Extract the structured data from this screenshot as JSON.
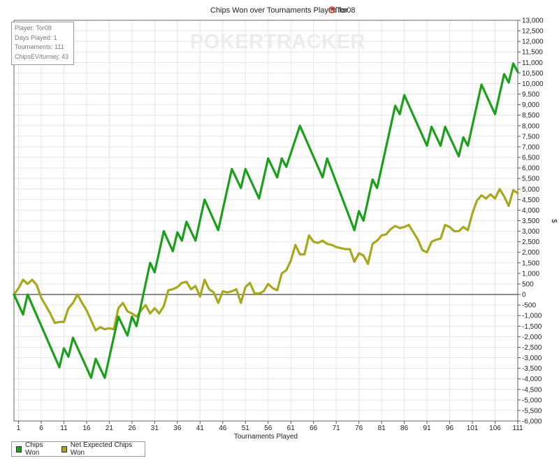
{
  "title_prefix": "Chips Won over Tournaments Played for",
  "player": "Tor08",
  "watermark": "POKERTRACKER",
  "info": {
    "player_line": "Player: Tor08",
    "days_line": "Days Played: 1",
    "tournaments_line": "Tournaments: 111",
    "chipsev_line": "ChipsEV/turniej: 43"
  },
  "colors": {
    "chips_won": "#1aa01a",
    "net_expected": "#a8a81c",
    "grid": "#e6e6e6",
    "zero_line": "#333333"
  },
  "chart_data": {
    "type": "line",
    "title": "Chips Won over Tournaments Played for Tor08",
    "xlabel": "Tournaments Played",
    "ylabel": "$",
    "xlim": [
      0,
      111
    ],
    "ylim": [
      -6000,
      13000
    ],
    "x_ticks": [
      1,
      6,
      11,
      16,
      21,
      26,
      31,
      36,
      41,
      46,
      51,
      56,
      61,
      66,
      71,
      76,
      81,
      86,
      91,
      96,
      101,
      106,
      111
    ],
    "y_ticks": [
      -6000,
      -5500,
      -5000,
      -4500,
      -4000,
      -3500,
      -3000,
      -2500,
      -2000,
      -1500,
      -1000,
      -500,
      0,
      500,
      1000,
      1500,
      2000,
      2500,
      3000,
      3500,
      4000,
      4500,
      5000,
      5500,
      6000,
      6500,
      7000,
      7500,
      8000,
      8500,
      9000,
      9500,
      10000,
      10500,
      11000,
      11500,
      12000,
      12500,
      13000
    ],
    "y_tick_labels": [
      "-6,000",
      "-5,500",
      "-5,000",
      "-4,500",
      "-4,000",
      "-3,500",
      "-3,000",
      "-2,500",
      "-2,000",
      "-1,500",
      "-1,000",
      "-500",
      "0",
      "500",
      "1,000",
      "1,500",
      "2,000",
      "2,500",
      "3,000",
      "3,500",
      "4,000",
      "4,500",
      "5,000",
      "5,500",
      "6,000",
      "6,500",
      "7,000",
      "7,500",
      "8,000",
      "8,500",
      "9,000",
      "9,500",
      "10,000",
      "10,500",
      "11,000",
      "11,500",
      "12,000",
      "12,500",
      "13,000"
    ],
    "grid": true,
    "legend_position": "bottom-left",
    "series": [
      {
        "name": "Chips Won",
        "color": "#1aa01a",
        "points": [
          [
            0,
            0
          ],
          [
            2,
            -950
          ],
          [
            3,
            0
          ],
          [
            10,
            -3450
          ],
          [
            11,
            -2550
          ],
          [
            12,
            -2950
          ],
          [
            13,
            -2050
          ],
          [
            17,
            -3950
          ],
          [
            18,
            -3050
          ],
          [
            20,
            -3950
          ],
          [
            23,
            -1050
          ],
          [
            25,
            -1950
          ],
          [
            26,
            -1050
          ],
          [
            27,
            -1500
          ],
          [
            30,
            1500
          ],
          [
            31,
            1050
          ],
          [
            33,
            3000
          ],
          [
            35,
            2050
          ],
          [
            36,
            2950
          ],
          [
            37,
            2550
          ],
          [
            38,
            3450
          ],
          [
            40,
            2550
          ],
          [
            42,
            4500
          ],
          [
            45,
            3050
          ],
          [
            48,
            5950
          ],
          [
            50,
            5050
          ],
          [
            51,
            5950
          ],
          [
            54,
            4550
          ],
          [
            56,
            6450
          ],
          [
            58,
            5550
          ],
          [
            59,
            6450
          ],
          [
            60,
            6050
          ],
          [
            63,
            8000
          ],
          [
            68,
            5550
          ],
          [
            69,
            6450
          ],
          [
            75,
            3050
          ],
          [
            76,
            3950
          ],
          [
            77,
            3500
          ],
          [
            79,
            5450
          ],
          [
            80,
            5050
          ],
          [
            84,
            8950
          ],
          [
            85,
            8550
          ],
          [
            86,
            9450
          ],
          [
            91,
            7050
          ],
          [
            92,
            7950
          ],
          [
            94,
            7050
          ],
          [
            95,
            7950
          ],
          [
            98,
            6550
          ],
          [
            99,
            7450
          ],
          [
            100,
            7050
          ],
          [
            103,
            9950
          ],
          [
            106,
            8550
          ],
          [
            108,
            10450
          ],
          [
            109,
            10050
          ],
          [
            110,
            10950
          ],
          [
            111,
            10550
          ]
        ]
      },
      {
        "name": "Net Expected Chips Won",
        "color": "#a8a81c",
        "points": [
          [
            0,
            0
          ],
          [
            1,
            300
          ],
          [
            2,
            700
          ],
          [
            3,
            500
          ],
          [
            4,
            700
          ],
          [
            5,
            450
          ],
          [
            6,
            -150
          ],
          [
            8,
            -900
          ],
          [
            9,
            -1350
          ],
          [
            10,
            -1300
          ],
          [
            11,
            -1300
          ],
          [
            12,
            -650
          ],
          [
            13,
            -400
          ],
          [
            14,
            0
          ],
          [
            15,
            -400
          ],
          [
            16,
            -750
          ],
          [
            18,
            -1700
          ],
          [
            19,
            -1550
          ],
          [
            20,
            -1650
          ],
          [
            21,
            -1600
          ],
          [
            22,
            -1650
          ],
          [
            23,
            -650
          ],
          [
            24,
            -400
          ],
          [
            25,
            -800
          ],
          [
            26,
            -900
          ],
          [
            27,
            -1050
          ],
          [
            28,
            -750
          ],
          [
            29,
            -500
          ],
          [
            30,
            -900
          ],
          [
            31,
            -650
          ],
          [
            32,
            -900
          ],
          [
            33,
            -550
          ],
          [
            34,
            200
          ],
          [
            35,
            250
          ],
          [
            36,
            350
          ],
          [
            37,
            550
          ],
          [
            38,
            600
          ],
          [
            39,
            250
          ],
          [
            40,
            400
          ],
          [
            41,
            -100
          ],
          [
            42,
            700
          ],
          [
            43,
            250
          ],
          [
            44,
            100
          ],
          [
            45,
            -400
          ],
          [
            46,
            150
          ],
          [
            47,
            100
          ],
          [
            48,
            150
          ],
          [
            49,
            250
          ],
          [
            50,
            -400
          ],
          [
            51,
            350
          ],
          [
            52,
            550
          ],
          [
            53,
            50
          ],
          [
            54,
            50
          ],
          [
            55,
            150
          ],
          [
            56,
            500
          ],
          [
            57,
            300
          ],
          [
            58,
            200
          ],
          [
            59,
            1000
          ],
          [
            60,
            1150
          ],
          [
            61,
            1600
          ],
          [
            62,
            2350
          ],
          [
            63,
            1900
          ],
          [
            64,
            1900
          ],
          [
            65,
            2800
          ],
          [
            66,
            2500
          ],
          [
            67,
            2450
          ],
          [
            68,
            2550
          ],
          [
            69,
            2400
          ],
          [
            70,
            2350
          ],
          [
            71,
            2250
          ],
          [
            72,
            2200
          ],
          [
            73,
            2150
          ],
          [
            74,
            2150
          ],
          [
            75,
            1550
          ],
          [
            76,
            1950
          ],
          [
            77,
            1850
          ],
          [
            78,
            1450
          ],
          [
            79,
            2400
          ],
          [
            80,
            2550
          ],
          [
            81,
            2800
          ],
          [
            82,
            2850
          ],
          [
            83,
            3100
          ],
          [
            84,
            3250
          ],
          [
            85,
            3150
          ],
          [
            86,
            3200
          ],
          [
            87,
            3300
          ],
          [
            88,
            2950
          ],
          [
            89,
            2600
          ],
          [
            90,
            2100
          ],
          [
            91,
            2000
          ],
          [
            92,
            2500
          ],
          [
            93,
            2600
          ],
          [
            94,
            2650
          ],
          [
            95,
            3300
          ],
          [
            96,
            3200
          ],
          [
            97,
            3000
          ],
          [
            98,
            3000
          ],
          [
            99,
            3200
          ],
          [
            100,
            3050
          ],
          [
            101,
            3850
          ],
          [
            102,
            4450
          ],
          [
            103,
            4700
          ],
          [
            104,
            4550
          ],
          [
            105,
            4750
          ],
          [
            106,
            4550
          ],
          [
            107,
            5000
          ],
          [
            108,
            4650
          ],
          [
            109,
            4200
          ],
          [
            110,
            4950
          ],
          [
            111,
            4800
          ]
        ]
      }
    ]
  }
}
